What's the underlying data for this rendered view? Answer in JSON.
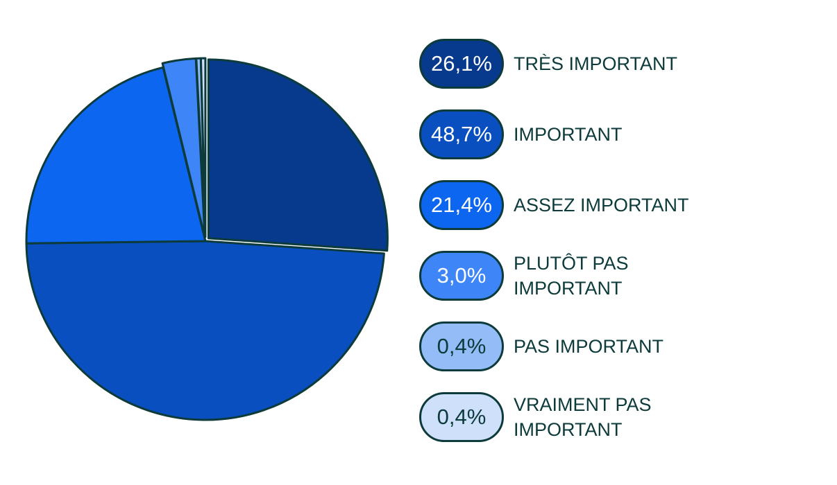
{
  "chart_data": {
    "type": "pie",
    "title": "",
    "slices": [
      {
        "label": "TRÈS IMPORTANT",
        "display": "26,1%",
        "value": 26.1,
        "color": "#073a8c",
        "text_color": "#ffffff"
      },
      {
        "label": "IMPORTANT",
        "display": "48,7%",
        "value": 48.7,
        "color": "#0a4fc0",
        "text_color": "#ffffff"
      },
      {
        "label": "ASSEZ IMPORTANT",
        "display": "21,4%",
        "value": 21.4,
        "color": "#0d66f0",
        "text_color": "#ffffff"
      },
      {
        "label": "PLUTÔT PAS IMPORTANT",
        "display": "3,0%",
        "value": 3.0,
        "color": "#3e86f7",
        "text_color": "#ffffff"
      },
      {
        "label": "PAS IMPORTANT",
        "display": "0,4%",
        "value": 0.4,
        "color": "#94bdf8",
        "text_color": "#0d3a3a"
      },
      {
        "label": "VRAIMENT PAS IMPORTANT",
        "display": "0,4%",
        "value": 0.4,
        "color": "#cfe0fb",
        "text_color": "#0d3a3a"
      }
    ],
    "legend_position": "right",
    "slice_style": "exploded"
  }
}
